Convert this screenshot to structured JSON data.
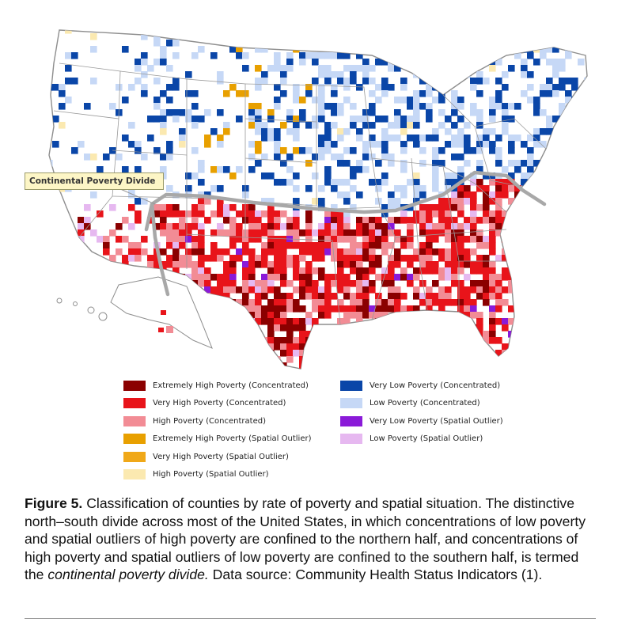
{
  "map": {
    "divide_label": "Continental Poverty Divide",
    "colors": {
      "extremely_high_conc": "#8b0000",
      "very_high_conc": "#e8141a",
      "high_conc": "#f28c95",
      "extremely_high_outlier": "#e8a000",
      "very_high_outlier": "#f0a818",
      "high_outlier": "#fbe9b0",
      "very_low_conc": "#0a46a8",
      "low_conc": "#c6d8f6",
      "very_low_outlier": "#8a1ad8",
      "low_outlier": "#e6b8f0",
      "divide_line": "#a8a8a8",
      "state_fill": "#ffffff",
      "border": "#8e8e8e"
    }
  },
  "legend": {
    "left": [
      {
        "label": "Extremely High Poverty (Concentrated)",
        "color": "#8b0000"
      },
      {
        "label": "Very High Poverty (Concentrated)",
        "color": "#e8141a"
      },
      {
        "label": "High Poverty (Concentrated)",
        "color": "#f28c95"
      },
      {
        "label": "Extremely High Poverty (Spatial Outlier)",
        "color": "#e8a000"
      },
      {
        "label": "Very High Poverty (Spatial Outlier)",
        "color": "#f0a818"
      },
      {
        "label": "High Poverty (Spatial Outlier)",
        "color": "#fbe9b0"
      }
    ],
    "right": [
      {
        "label": "Very Low Poverty (Concentrated)",
        "color": "#0a46a8"
      },
      {
        "label": "Low Poverty (Concentrated)",
        "color": "#c6d8f6"
      },
      {
        "label": "Very Low Poverty (Spatial Outlier)",
        "color": "#8a1ad8"
      },
      {
        "label": "Low Poverty (Spatial Outlier)",
        "color": "#e6b8f0"
      }
    ]
  },
  "caption": {
    "figure_label": "Figure 5.",
    "text_main": " Classification of counties by rate of poverty and spatial situation. The distinctive north–south divide across most of the United States, in which concentrations of low poverty and spatial outliers of high poverty are confined to the northern half, and concentrations of high poverty and spatial outliers of low poverty are confined to the southern half, is termed the ",
    "text_italic": "continental poverty divide.",
    "text_end": " Data source: Community Health Status Indicators (1)."
  }
}
